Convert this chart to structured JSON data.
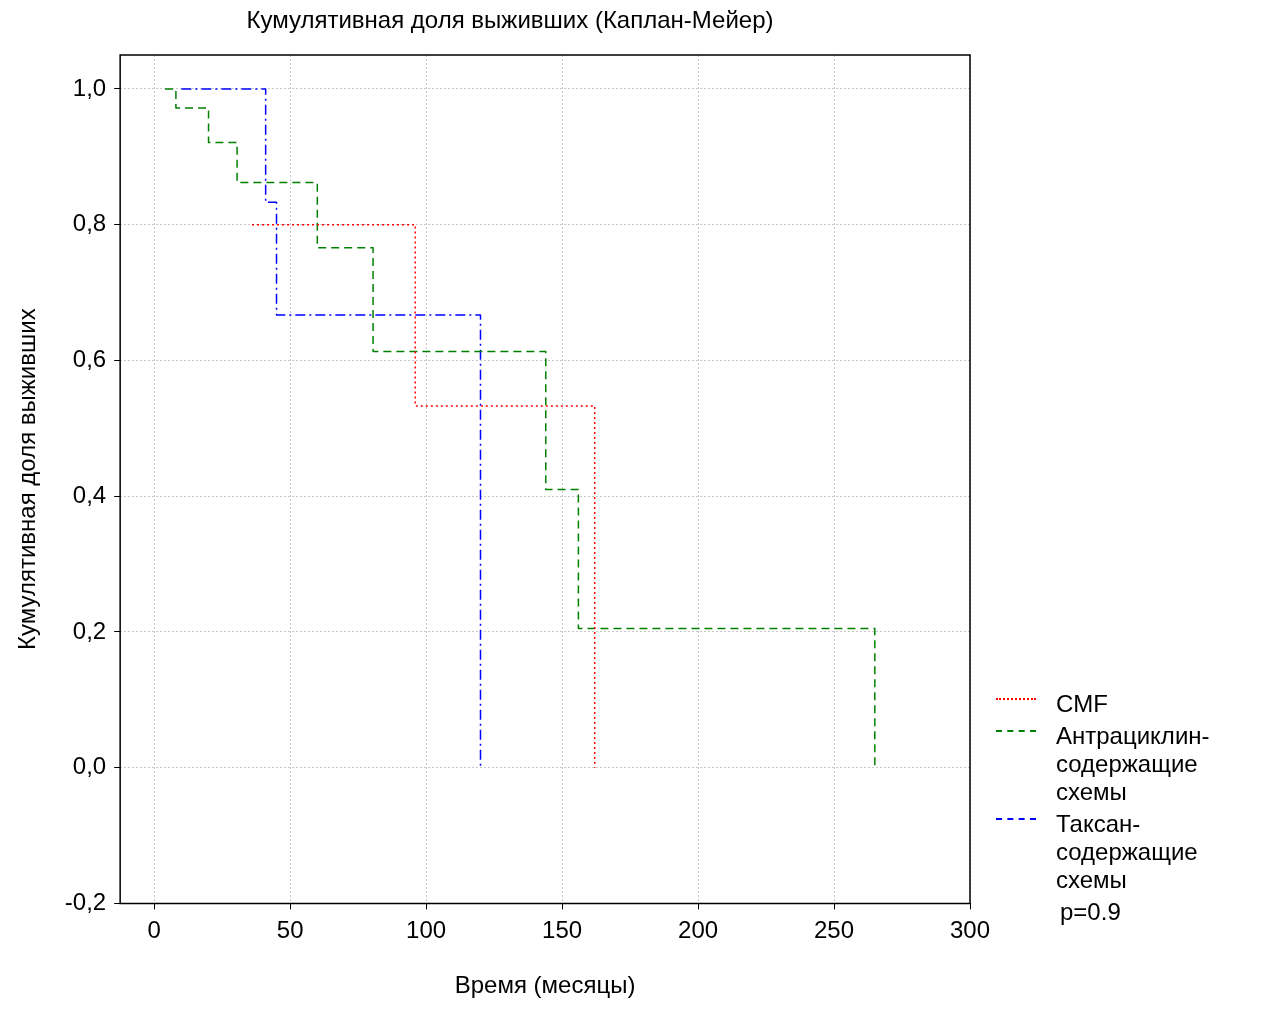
{
  "chart_data": {
    "type": "step",
    "title": "Кумулятивная доля выживших (Каплан-Мейер)",
    "xlabel": "Время (месяцы)",
    "ylabel": "Кумулятивная доля выживших",
    "series": [
      {
        "name": "CMF",
        "color": "#ff0000",
        "line_style": "dotted",
        "x": [
          36,
          96,
          162
        ],
        "values": [
          0.8,
          0.533,
          0
        ]
      },
      {
        "name": "Антрациклин-содержащие схемы",
        "color": "#008000",
        "line_style": "dashed",
        "x": [
          4,
          8,
          20,
          30.5,
          60,
          80.5,
          144,
          156,
          265
        ],
        "values": [
          1.0,
          0.972,
          0.921,
          0.862,
          0.766,
          0.613,
          0.41,
          0.205,
          0
        ]
      },
      {
        "name": "Таксан-содержащие схемы",
        "color": "#0000ff",
        "line_style": "dashdot",
        "x": [
          10,
          41,
          45,
          120
        ],
        "values": [
          1.0,
          0.833,
          0.667,
          0
        ]
      }
    ],
    "xlim": [
      -12.5,
      300
    ],
    "xticks": [
      0,
      50,
      100,
      150,
      200,
      250,
      300
    ],
    "ylim": [
      -0.2,
      1.05
    ],
    "yticks": [
      {
        "value": -0.2,
        "label": "-0,2"
      },
      {
        "value": 0,
        "label": "0,0"
      },
      {
        "value": 0.2,
        "label": "0,2"
      },
      {
        "value": 0.4,
        "label": "0,4"
      },
      {
        "value": 0.6,
        "label": "0,6"
      },
      {
        "value": 0.8,
        "label": "0,8"
      },
      {
        "value": 1.0,
        "label": "1,0"
      }
    ],
    "grid": true,
    "legend": "right",
    "marker": "none",
    "annotations": [
      "p=0.9"
    ]
  }
}
